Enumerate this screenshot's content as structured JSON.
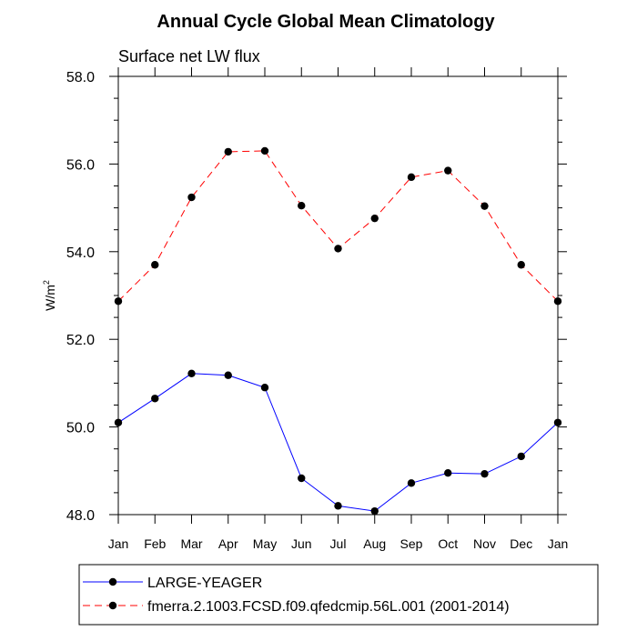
{
  "chart_data": {
    "type": "line",
    "title": "Annual Cycle Global Mean Climatology",
    "subtitle": "Surface net LW flux",
    "xlabel": "",
    "ylabel": {
      "base": "W/m",
      "sup": "2"
    },
    "categories": [
      "Jan",
      "Feb",
      "Mar",
      "Apr",
      "May",
      "Jun",
      "Jul",
      "Aug",
      "Sep",
      "Oct",
      "Nov",
      "Dec",
      "Jan"
    ],
    "ylim": [
      48.0,
      58.0
    ],
    "y_major_ticks": [
      "48.0",
      "50.0",
      "52.0",
      "54.0",
      "56.0",
      "58.0"
    ],
    "y_minor_step": 0.5,
    "grid": false,
    "legend_position": "bottom",
    "series": [
      {
        "name": "LARGE-YEAGER",
        "color": "#0000ff",
        "line_style": "solid",
        "marker": "filled-circle",
        "values": [
          50.1,
          50.65,
          51.22,
          51.18,
          50.9,
          48.83,
          48.2,
          48.08,
          48.72,
          48.95,
          48.93,
          49.33,
          50.1
        ]
      },
      {
        "name": "fmerra.2.1003.FCSD.f09.qfedcmip.56L.001 (2001-2014)",
        "color": "#ff0000",
        "line_style": "dashed",
        "marker": "filled-circle",
        "values": [
          52.87,
          53.7,
          55.24,
          56.28,
          56.3,
          55.05,
          54.07,
          54.76,
          55.7,
          55.85,
          55.04,
          53.7,
          52.87
        ]
      }
    ]
  }
}
